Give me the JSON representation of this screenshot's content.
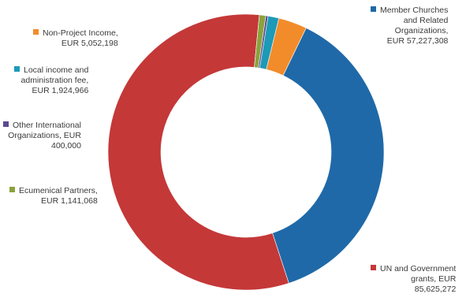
{
  "chart_data": {
    "type": "pie",
    "style": "donut",
    "categories": [
      "Member Churches and Related Organizations",
      "UN and Government grants",
      "Ecumenical Partners",
      "Other International Organizations",
      "Local income and administration fee",
      "Non-Project Income"
    ],
    "values": [
      57227308,
      85625272,
      1141068,
      400000,
      1924966,
      5052198
    ],
    "colors": [
      "#1f69a8",
      "#c43838",
      "#8aa33c",
      "#5b4a8f",
      "#1c9ab8",
      "#f28c2a"
    ],
    "labels": [
      {
        "lines": [
          "Member Churches",
          "and Related",
          "Organizations,",
          "EUR 57,227,308"
        ]
      },
      {
        "lines": [
          "UN and Government",
          "grants, EUR",
          "85,625,272"
        ]
      },
      {
        "lines": [
          "Ecumenical Partners,",
          "EUR 1,141,068"
        ]
      },
      {
        "lines": [
          "Other International",
          "Organizations, EUR",
          "400,000"
        ]
      },
      {
        "lines": [
          "Local income and",
          "administration fee,",
          "EUR 1,924,966"
        ]
      },
      {
        "lines": [
          "Non-Project Income,",
          "EUR 5,052,198"
        ]
      }
    ]
  }
}
